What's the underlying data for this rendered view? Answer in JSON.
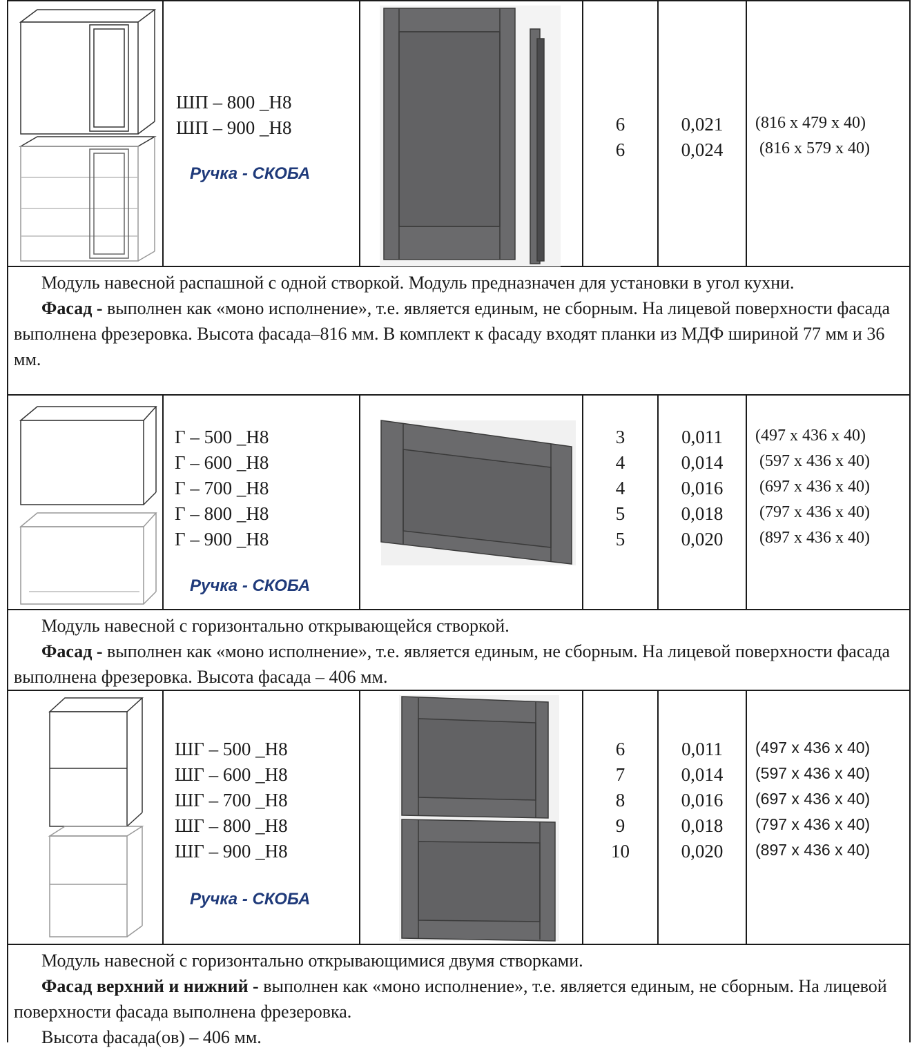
{
  "colors": {
    "facade": "#6a6a6c",
    "facade_dark": "#4a4a4c",
    "line": "#1a1a1a",
    "handle_text": "#1f3a7a"
  },
  "rows": [
    {
      "models": [
        "ШП – 800 _Н8",
        "ШП – 900 _Н8"
      ],
      "handle": "Ручка - СКОБА",
      "qty": [
        "6",
        "6"
      ],
      "volume": [
        "0,021",
        "0,024"
      ],
      "dims": [
        "(816 x 479 x 40)",
        "(816 x 579 x 40)"
      ],
      "desc1": "Модуль навесной распашной с одной створкой. Модуль предназначен для установки в угол кухни.",
      "desc_bold": "Фасад -",
      "desc2": " выполнен как «моно исполнение», т.е. является единым, не сборным. На лицевой поверхности фасада выполнена фрезеровка. Высота фасада–816 мм. В комплект к фасаду входят планки из МДФ шириной 77 мм и 36 мм."
    },
    {
      "models": [
        "Г – 500 _Н8",
        "Г – 600 _Н8",
        "Г – 700 _Н8",
        "Г – 800 _Н8",
        "Г – 900 _Н8"
      ],
      "handle": "Ручка - СКОБА",
      "qty": [
        "3",
        "4",
        "4",
        "5",
        "5"
      ],
      "volume": [
        "0,011",
        "0,014",
        "0,016",
        "0,018",
        "0,020"
      ],
      "dims": [
        "(497 x 436 x 40)",
        "(597 x 436 x 40)",
        "(697 x 436 x 40)",
        "(797 x 436 x 40)",
        "(897 x 436 x 40)"
      ],
      "desc1": "Модуль навесной с горизонтально открывающейся створкой.",
      "desc_bold": "Фасад -",
      "desc2": " выполнен как «моно исполнение», т.е. является единым, не сборным. На лицевой поверхности фасада выполнена фрезеровка. Высота фасада – 406 мм."
    },
    {
      "models": [
        "ШГ – 500 _Н8",
        "ШГ – 600 _Н8",
        "ШГ – 700 _Н8",
        "ШГ – 800 _Н8",
        "ШГ – 900 _Н8"
      ],
      "handle": "Ручка - СКОБА",
      "qty": [
        "6",
        "7",
        "8",
        "9",
        "10"
      ],
      "volume": [
        "0,011",
        "0,014",
        "0,016",
        "0,018",
        "0,020"
      ],
      "dims": [
        "(497 x 436 x 40)",
        "(597 x 436 x 40)",
        "(697 x 436 x 40)",
        "(797 x 436 x 40)",
        "(897 x 436 x 40)"
      ],
      "desc1": "Модуль навесной с горизонтально открывающимися двумя створками.",
      "desc_bold": "Фасад верхний и нижний -",
      "desc2": " выполнен как «моно исполнение», т.е. является единым, не сборным. На лицевой поверхности фасада выполнена фрезеровка.",
      "desc3": "Высота фасада(ов) – 406 мм."
    }
  ]
}
